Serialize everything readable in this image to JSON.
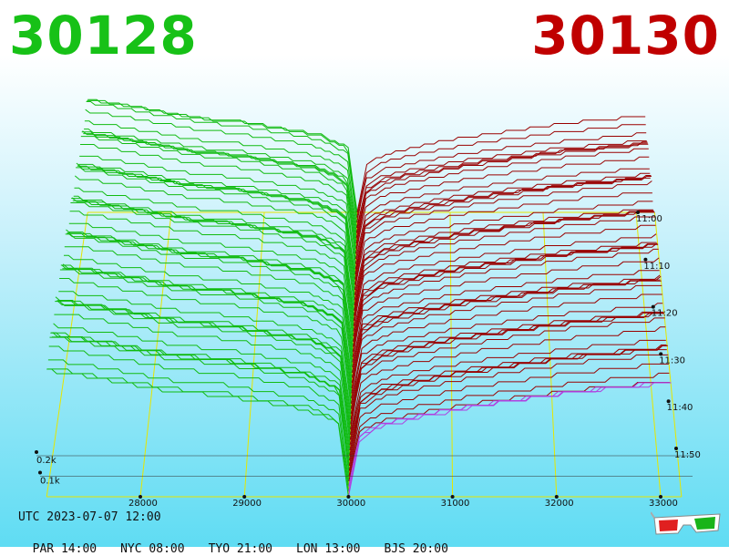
{
  "header": {
    "bid_price": "30128",
    "ask_price": "30130",
    "bid_color": "#17c117",
    "ask_color": "#c00000"
  },
  "footer": {
    "utc": "UTC 2023-07-07 12:00",
    "zones": [
      {
        "label": "PAR 14:00"
      },
      {
        "label": "NYC 08:00"
      },
      {
        "label": "TYO 21:00"
      },
      {
        "label": "LON 13:00"
      },
      {
        "label": "BJS 20:00"
      }
    ],
    "glasses_icon": "3d-glasses-icon"
  },
  "chart_data": {
    "type": "3d-depth-surface",
    "title": "",
    "price_axis": {
      "ticks": [
        28000,
        29000,
        30000,
        31000,
        32000,
        33000
      ],
      "range": [
        27100,
        33200
      ]
    },
    "depth_axis": {
      "ticks": [
        {
          "value": 0.1,
          "label": "0.1k"
        },
        {
          "value": 0.2,
          "label": "0.2k"
        }
      ]
    },
    "time_axis": {
      "ticks": [
        "11:00",
        "11:10",
        "11:20",
        "11:30",
        "11:40",
        "11:50"
      ]
    },
    "series": [
      {
        "name": "",
        "side": "bid",
        "color": "#11bb11",
        "curve": [
          [
            27100,
            0.55
          ],
          [
            27400,
            0.53
          ],
          [
            27800,
            0.5
          ],
          [
            28300,
            0.46
          ],
          [
            28800,
            0.44
          ],
          [
            29200,
            0.41
          ],
          [
            29600,
            0.38
          ],
          [
            29900,
            0.32
          ],
          [
            30000,
            0.0
          ]
        ]
      },
      {
        "name": "",
        "side": "ask",
        "color": "#990000",
        "curve": [
          [
            30000,
            0.0
          ],
          [
            30100,
            0.22
          ],
          [
            30300,
            0.27
          ],
          [
            30700,
            0.31
          ],
          [
            31200,
            0.35
          ],
          [
            31700,
            0.38
          ],
          [
            32200,
            0.41
          ],
          [
            32700,
            0.43
          ],
          [
            33100,
            0.45
          ]
        ]
      }
    ]
  }
}
